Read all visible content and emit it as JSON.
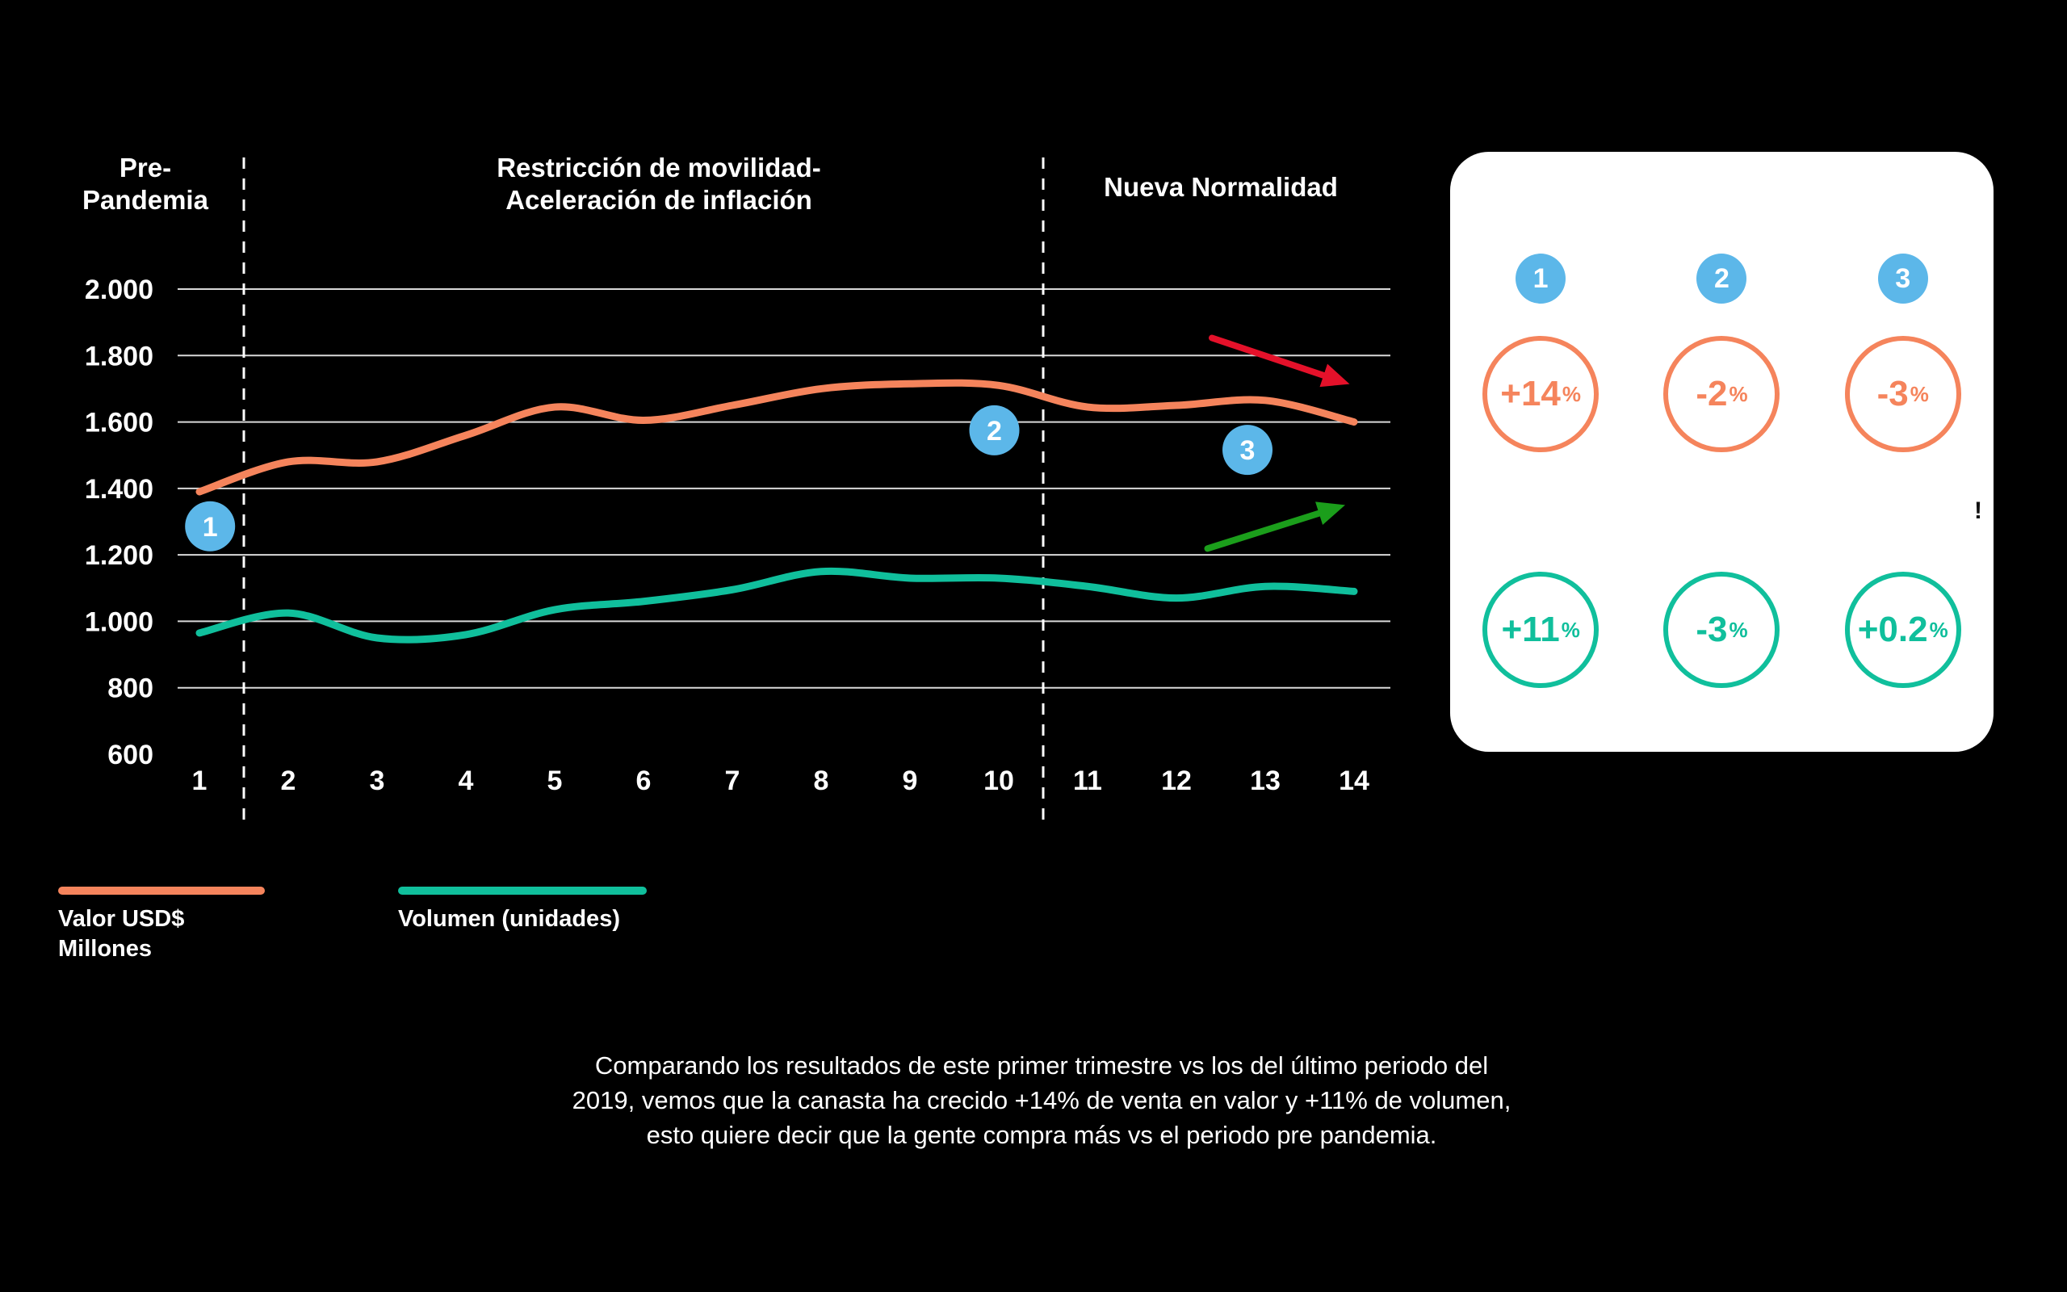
{
  "period_headers": [
    {
      "lines": [
        "Pre-",
        "Pandemia"
      ]
    },
    {
      "lines": [
        "Restricción de movilidad-",
        "Aceleración de inflación"
      ]
    },
    {
      "lines": [
        "Nueva Normalidad"
      ]
    }
  ],
  "chart_data": {
    "type": "line",
    "x": [
      1,
      2,
      3,
      4,
      5,
      6,
      7,
      8,
      9,
      10,
      11,
      12,
      13,
      14
    ],
    "ylim": [
      600,
      2000
    ],
    "yticks": [
      {
        "label": "2.000",
        "value": 2000
      },
      {
        "label": "1.800",
        "value": 1800
      },
      {
        "label": "1.600",
        "value": 1600
      },
      {
        "label": "1.400",
        "value": 1400
      },
      {
        "label": "1.200",
        "value": 1200
      },
      {
        "label": "1.000",
        "value": 1000
      },
      {
        "label": "800",
        "value": 800
      },
      {
        "label": "600",
        "value": 600
      }
    ],
    "grid": true,
    "legend_position": "bottom-left",
    "series": [
      {
        "name": "Valor USD$ Millones",
        "color": "#F5845C",
        "values": [
          1390,
          1480,
          1480,
          1560,
          1645,
          1605,
          1650,
          1700,
          1715,
          1710,
          1645,
          1650,
          1665,
          1600
        ]
      },
      {
        "name": "Volumen (unidades)",
        "color": "#10BF9C",
        "values": [
          965,
          1025,
          950,
          960,
          1035,
          1060,
          1095,
          1150,
          1130,
          1130,
          1105,
          1070,
          1105,
          1090
        ]
      }
    ],
    "separators_x": [
      1.5,
      10.5
    ],
    "period_bands": [
      {
        "label": "Pre-Pandemia",
        "from": 1,
        "to": 1.5
      },
      {
        "label": "Restricción de movilidad- Aceleración de inflación",
        "from": 1.5,
        "to": 10.5
      },
      {
        "label": "Nueva Normalidad",
        "from": 10.5,
        "to": 14
      }
    ],
    "annotations": [
      {
        "label": "1",
        "x": 1.12,
        "value": 1286,
        "color": "#5CB7E9"
      },
      {
        "label": "2",
        "x": 9.95,
        "value": 1575,
        "color": "#5CB7E9"
      },
      {
        "label": "3",
        "x": 12.8,
        "value": 1516,
        "color": "#5CB7E9"
      }
    ],
    "arrows": [
      {
        "color": "#E4112A",
        "x1": 12.4,
        "v1": 1853,
        "x2": 13.95,
        "v2": 1714
      },
      {
        "color": "#1B9E1B",
        "x1": 12.35,
        "v1": 1219,
        "x2": 13.9,
        "v2": 1350
      }
    ]
  },
  "summary_card": {
    "badge_color": "#5CB7E9",
    "valor_color": "#F5845C",
    "volumen_color": "#10BF9C",
    "exclamation": "!",
    "columns": [
      {
        "badge": "1",
        "valor_num": "+14",
        "valor_pct": "%",
        "vol_num": "+11",
        "vol_pct": "%"
      },
      {
        "badge": "2",
        "valor_num": "-2",
        "valor_pct": "%",
        "vol_num": "-3",
        "vol_pct": "%"
      },
      {
        "badge": "3",
        "valor_num": "-3",
        "valor_pct": "%",
        "vol_num": "+0.2",
        "vol_pct": "%"
      }
    ]
  },
  "legend": {
    "items": [
      {
        "lines": [
          "Valor USD$",
          "Millones"
        ],
        "color": "#F5845C"
      },
      {
        "lines": [
          "Volumen (unidades)"
        ],
        "color": "#10BF9C"
      }
    ]
  },
  "caption": {
    "lines": [
      "Comparando los resultados de este primer trimestre vs los del último periodo del",
      "2019, vemos que la canasta ha crecido +14% de venta en valor y +11% de volumen,",
      "esto quiere decir que la gente compra más vs el periodo pre pandemia."
    ]
  }
}
